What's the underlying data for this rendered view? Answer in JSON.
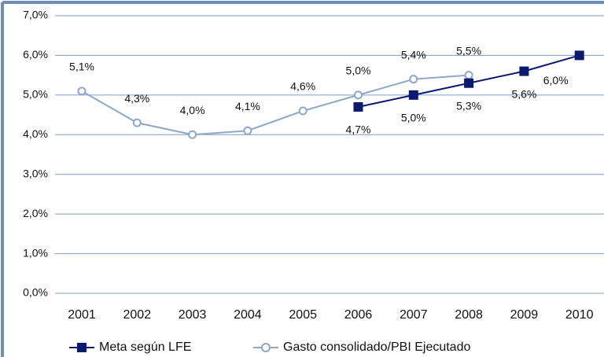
{
  "chart_data": {
    "type": "line",
    "categories": [
      "2001",
      "2002",
      "2003",
      "2004",
      "2005",
      "2006",
      "2007",
      "2008",
      "2009",
      "2010"
    ],
    "series": [
      {
        "name": "Meta según  LFE",
        "color": "#0a1a6e",
        "marker": "square",
        "values": [
          null,
          null,
          null,
          null,
          null,
          4.7,
          5.0,
          5.3,
          5.6,
          6.0
        ],
        "value_labels": [
          null,
          null,
          null,
          null,
          null,
          "4,7%",
          "5,0%",
          "5,3%",
          "5,6%",
          "6,0%"
        ]
      },
      {
        "name": "Gasto consolidado/PBI Ejecutado",
        "color": "#8ea6c8",
        "marker": "circle",
        "values": [
          5.1,
          4.3,
          4.0,
          4.1,
          4.6,
          5.0,
          5.4,
          5.5,
          null,
          null
        ],
        "value_labels": [
          "5,1%",
          "4,3%",
          "4,0%",
          "4,1%",
          "4,6%",
          "5,0%",
          "5,4%",
          "5,5%",
          null,
          null
        ]
      }
    ],
    "ylim": [
      0,
      7
    ],
    "yticks": [
      {
        "value": 0,
        "label": "0,0%"
      },
      {
        "value": 1,
        "label": "1,0%"
      },
      {
        "value": 2,
        "label": "2,0%"
      },
      {
        "value": 3,
        "label": "3,0%"
      },
      {
        "value": 4,
        "label": "4,0%"
      },
      {
        "value": 5,
        "label": "5,0%"
      },
      {
        "value": 6,
        "label": "6,0%"
      },
      {
        "value": 7,
        "label": "7,0%"
      }
    ],
    "grid": true,
    "legend": "bottom"
  }
}
